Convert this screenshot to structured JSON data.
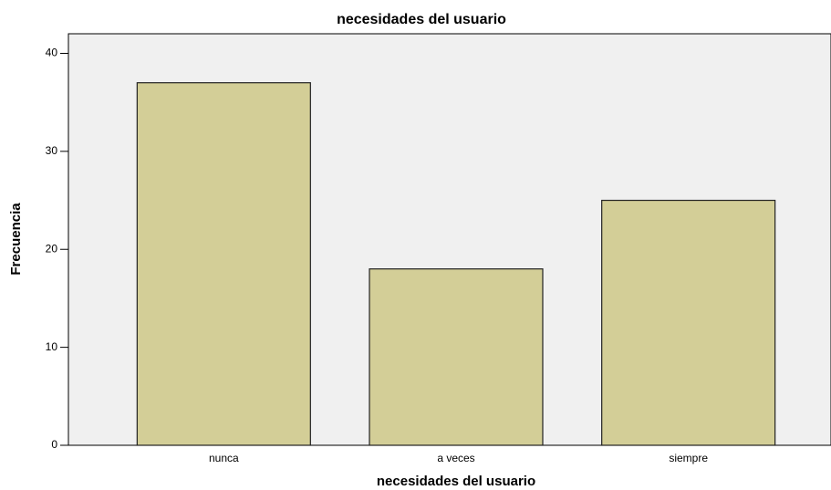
{
  "chart_data": {
    "type": "bar",
    "title": "necesidades del usuario",
    "x_label": "necesidades del usuario",
    "y_label": "Frecuencia",
    "categories": [
      "nunca",
      "a veces",
      "siempre"
    ],
    "values": [
      37,
      18,
      25
    ],
    "color": "#d3ce97",
    "ylim": [
      0,
      42
    ],
    "yticks": [
      0,
      10,
      20,
      30,
      40
    ],
    "grid": false
  }
}
